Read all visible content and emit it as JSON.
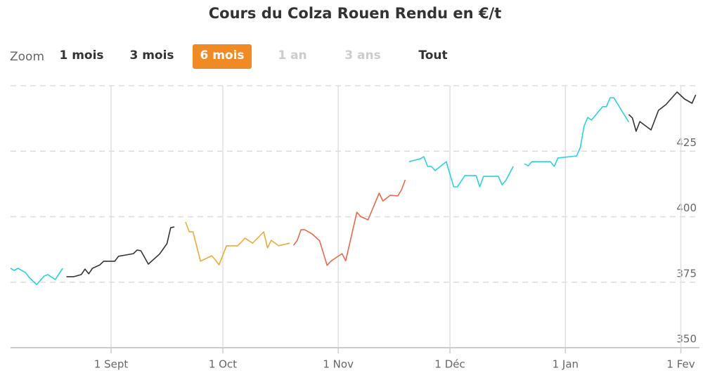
{
  "chart_data": {
    "type": "line",
    "title": "Cours du Colza Rouen Rendu en €/t",
    "xlim": [
      -27,
      158
    ],
    "ylim": [
      350,
      450
    ],
    "xticks": [
      {
        "value": 0,
        "label": "1 Sept"
      },
      {
        "value": 30,
        "label": "1 Oct"
      },
      {
        "value": 61,
        "label": "1 Nov"
      },
      {
        "value": 91,
        "label": "1 Déc"
      },
      {
        "value": 122,
        "label": "1 Jan"
      },
      {
        "value": 153,
        "label": "1 Fev"
      }
    ],
    "yticks": [
      350,
      375,
      400,
      425
    ],
    "grid": true,
    "series": [
      {
        "color": "#2bd2de",
        "x": [
          -27,
          -26,
          -25,
          -23,
          -22,
          -20,
          -18,
          -17,
          -15,
          -13
        ],
        "values": [
          380.3,
          379.5,
          380.3,
          378.7,
          376.8,
          374.1,
          377.3,
          377.9,
          376.0,
          380.3
        ]
      },
      {
        "color": "#333333",
        "x": [
          -12,
          -10,
          -8,
          -7,
          -6,
          -5,
          -3,
          -2,
          1,
          2,
          4,
          6,
          7,
          8,
          10,
          13,
          15,
          16,
          17
        ],
        "values": [
          377.1,
          377.1,
          377.9,
          380.0,
          378.2,
          380.3,
          381.6,
          383.0,
          383.0,
          384.9,
          385.4,
          385.9,
          387.3,
          387.0,
          381.9,
          385.7,
          389.7,
          395.8,
          396.1
        ]
      },
      {
        "color": "#efa93a",
        "x": [
          20,
          21,
          22,
          24,
          27,
          28,
          29,
          31,
          33,
          34,
          36,
          38,
          41,
          42,
          43,
          45,
          48
        ],
        "values": [
          398.0,
          394.2,
          394.2,
          383.0,
          385.1,
          383.5,
          381.6,
          388.9,
          388.9,
          388.9,
          391.8,
          389.9,
          394.2,
          388.1,
          391.0,
          388.9,
          389.9
        ]
      },
      {
        "color": "#e8684a",
        "x": [
          49,
          50,
          51,
          52,
          54,
          56,
          58,
          59,
          62,
          63,
          66,
          67,
          69,
          72,
          73,
          75,
          77,
          78,
          79
        ],
        "values": [
          389.1,
          391.0,
          395.0,
          395.0,
          393.4,
          390.8,
          381.4,
          383.0,
          385.9,
          383.2,
          401.7,
          400.1,
          398.8,
          409.0,
          406.0,
          408.2,
          407.9,
          410.3,
          414.1
        ]
      },
      {
        "color": "#2bd2de",
        "x": [
          80,
          83,
          84,
          85,
          86,
          87,
          90,
          92,
          93,
          95,
          98,
          99,
          100,
          104,
          105,
          106,
          108,
          110,
          111,
          112,
          113,
          118,
          119,
          120,
          125,
          126,
          127,
          128,
          129,
          132,
          133,
          134,
          135,
          139
        ],
        "values": [
          421.0,
          422.1,
          422.9,
          419.2,
          419.2,
          417.6,
          421.0,
          411.4,
          411.4,
          415.7,
          415.7,
          411.4,
          415.4,
          415.4,
          412.2,
          413.8,
          419.2,
          null,
          420.2,
          419.4,
          421.0,
          421.0,
          419.2,
          422.4,
          423.2,
          426.4,
          434.5,
          437.9,
          436.9,
          442.0,
          442.0,
          445.4,
          445.4,
          436.1
        ]
      },
      {
        "color": "#333333",
        "x": [
          139,
          140,
          141,
          142,
          145,
          147,
          149,
          152,
          154,
          156,
          157
        ],
        "values": [
          439.0,
          437.7,
          432.6,
          436.3,
          433.1,
          440.6,
          442.8,
          447.6,
          444.9,
          443.3,
          446.5
        ]
      }
    ]
  },
  "range_selector": {
    "label": "Zoom",
    "buttons": [
      "1 mois",
      "3 mois",
      "6 mois",
      "1 an",
      "3 ans",
      "Tout"
    ]
  }
}
